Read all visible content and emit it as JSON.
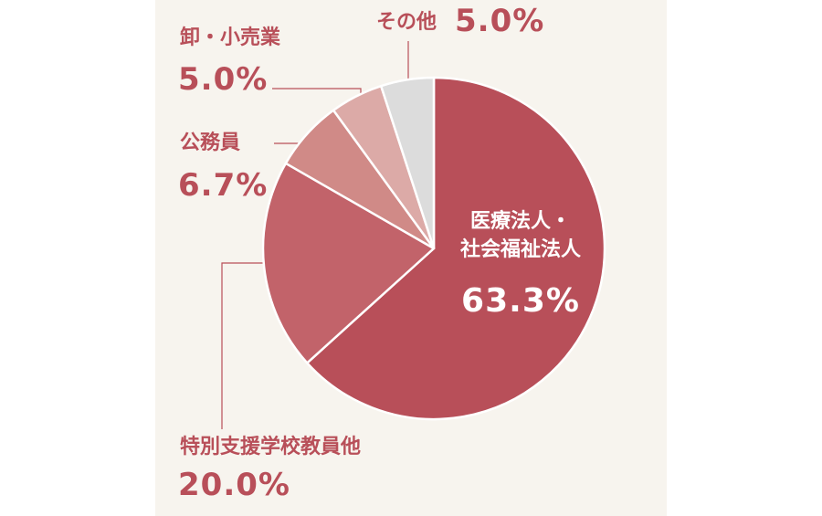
{
  "chart_data": {
    "type": "pie",
    "categories": [
      "医療法人・\n社会福祉法人",
      "特別支援学校教員他",
      "公務員",
      "卸・小売業",
      "その他"
    ],
    "values": [
      63.3,
      20.0,
      6.7,
      5.0,
      5.0
    ],
    "value_labels": [
      "63.3%",
      "20.0%",
      "6.7%",
      "5.0%",
      "5.0%"
    ],
    "colors": [
      "#b84f59",
      "#c2636a",
      "#d08a87",
      "#dcaaa7",
      "#dcdcdc"
    ]
  }
}
